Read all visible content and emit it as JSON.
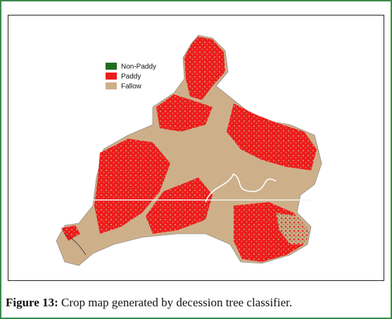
{
  "figure": {
    "legend": [
      "Non-Paddy",
      "Paddy",
      "Fallow"
    ],
    "caption": {
      "label": "Figure 13:",
      "text": "Crop map generated by decession tree classifier."
    }
  }
}
